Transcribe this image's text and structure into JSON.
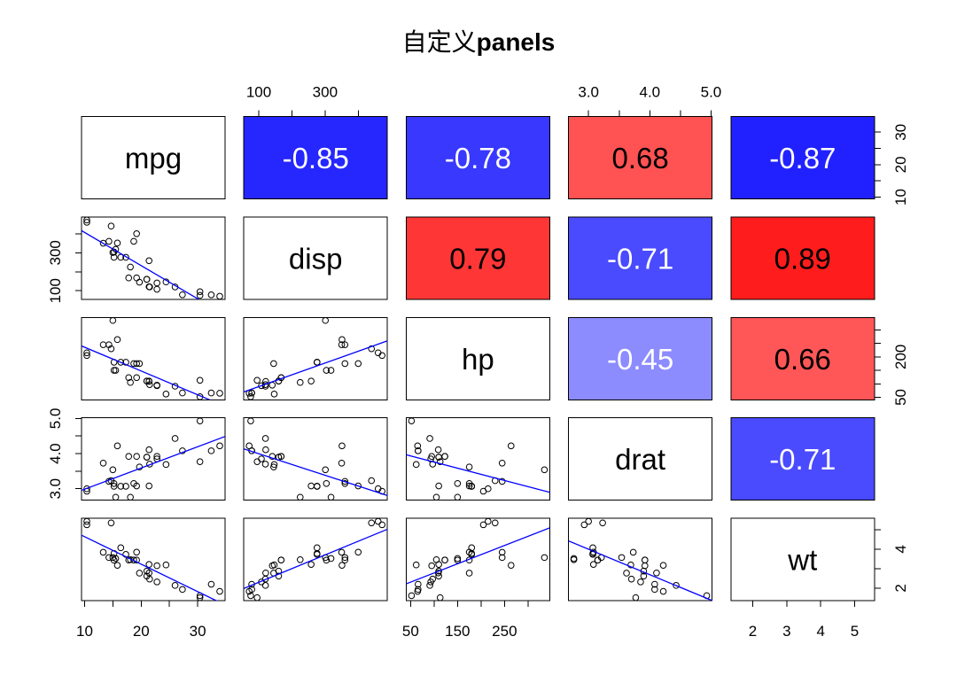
{
  "chart_data": {
    "type": "scatter",
    "title": {
      "prefix": "自定义",
      "suffix": "panels"
    },
    "variables": [
      {
        "name": "mpg",
        "values": [
          21.0,
          21.0,
          22.8,
          21.4,
          18.7,
          18.1,
          14.3,
          24.4,
          22.8,
          19.2,
          17.8,
          16.4,
          17.3,
          15.2,
          10.4,
          10.4,
          14.7,
          32.4,
          30.4,
          33.9,
          21.5,
          15.5,
          15.2,
          13.3,
          19.2,
          27.3,
          26.0,
          30.4,
          15.8,
          19.7,
          15.0,
          21.4
        ]
      },
      {
        "name": "disp",
        "values": [
          160.0,
          160.0,
          108.0,
          258.0,
          360.0,
          225.0,
          360.0,
          146.7,
          140.8,
          167.6,
          167.6,
          275.8,
          275.8,
          275.8,
          472.0,
          460.0,
          440.0,
          78.7,
          75.7,
          71.1,
          120.1,
          318.0,
          304.0,
          350.0,
          400.0,
          79.0,
          120.3,
          95.1,
          351.0,
          145.0,
          301.0,
          121.0
        ]
      },
      {
        "name": "hp",
        "values": [
          110,
          110,
          93,
          110,
          175,
          105,
          245,
          62,
          95,
          123,
          123,
          180,
          180,
          180,
          205,
          215,
          230,
          66,
          52,
          65,
          97,
          150,
          150,
          245,
          175,
          66,
          91,
          113,
          264,
          175,
          335,
          109
        ]
      },
      {
        "name": "drat",
        "values": [
          3.9,
          3.9,
          3.85,
          3.08,
          3.15,
          2.76,
          3.21,
          3.69,
          3.92,
          3.92,
          3.92,
          3.07,
          3.07,
          3.07,
          2.93,
          3.0,
          3.23,
          4.08,
          4.93,
          4.22,
          3.7,
          2.76,
          3.15,
          3.73,
          3.08,
          4.08,
          4.43,
          3.77,
          4.22,
          3.62,
          3.54,
          4.11
        ]
      },
      {
        "name": "wt",
        "values": [
          2.62,
          2.875,
          2.32,
          3.215,
          3.44,
          3.46,
          3.57,
          3.19,
          3.15,
          3.44,
          3.44,
          4.07,
          3.73,
          3.78,
          5.25,
          5.424,
          5.345,
          2.2,
          1.615,
          1.835,
          2.465,
          3.52,
          3.435,
          3.84,
          3.845,
          1.935,
          2.14,
          1.513,
          3.17,
          2.77,
          3.57,
          2.78
        ]
      }
    ],
    "correlations": [
      {
        "pair": [
          0,
          1
        ],
        "value": -0.85,
        "label": "-0.85"
      },
      {
        "pair": [
          0,
          2
        ],
        "value": -0.78,
        "label": "-0.78"
      },
      {
        "pair": [
          0,
          3
        ],
        "value": 0.68,
        "label": "0.68"
      },
      {
        "pair": [
          0,
          4
        ],
        "value": -0.87,
        "label": "-0.87"
      },
      {
        "pair": [
          1,
          2
        ],
        "value": 0.79,
        "label": "0.79"
      },
      {
        "pair": [
          1,
          3
        ],
        "value": -0.71,
        "label": "-0.71"
      },
      {
        "pair": [
          1,
          4
        ],
        "value": 0.89,
        "label": "0.89"
      },
      {
        "pair": [
          2,
          3
        ],
        "value": -0.45,
        "label": "-0.45"
      },
      {
        "pair": [
          2,
          4
        ],
        "value": 0.66,
        "label": "0.66"
      },
      {
        "pair": [
          3,
          4
        ],
        "value": -0.71,
        "label": "-0.71"
      }
    ],
    "axes": {
      "top": [
        {
          "variable": 1,
          "ticks": [
            100,
            200,
            300,
            400
          ],
          "labels": [
            {
              "at": 100,
              "text": "100"
            },
            {
              "at": 300,
              "text": "300"
            }
          ]
        },
        {
          "variable": 3,
          "ticks": [
            3.0,
            3.5,
            4.0,
            4.5,
            5.0
          ],
          "labels": [
            {
              "at": 3.0,
              "text": "3.0"
            },
            {
              "at": 4.0,
              "text": "4.0"
            },
            {
              "at": 5.0,
              "text": "5.0"
            }
          ]
        }
      ],
      "right": [
        {
          "variable": 0,
          "ticks": [
            10,
            15,
            20,
            25,
            30
          ],
          "labels": [
            {
              "at": 10,
              "text": "10"
            },
            {
              "at": 20,
              "text": "20"
            },
            {
              "at": 30,
              "text": "30"
            }
          ]
        },
        {
          "variable": 2,
          "ticks": [
            50,
            100,
            150,
            200,
            250,
            300
          ],
          "labels": [
            {
              "at": 50,
              "text": "50"
            },
            {
              "at": 200,
              "text": "200"
            }
          ]
        },
        {
          "variable": 4,
          "ticks": [
            2,
            3,
            4,
            5
          ],
          "labels": [
            {
              "at": 2,
              "text": "2"
            },
            {
              "at": 4,
              "text": "4"
            }
          ]
        }
      ],
      "left": [
        {
          "variable": 1,
          "ticks": [
            100,
            200,
            300,
            400
          ],
          "labels": [
            {
              "at": 100,
              "text": "100"
            },
            {
              "at": 300,
              "text": "300"
            }
          ]
        },
        {
          "variable": 3,
          "ticks": [
            3.0,
            3.5,
            4.0,
            4.5,
            5.0
          ],
          "labels": [
            {
              "at": 3.0,
              "text": "3.0"
            },
            {
              "at": 4.0,
              "text": "4.0"
            },
            {
              "at": 5.0,
              "text": "5.0"
            }
          ]
        }
      ],
      "bottom": [
        {
          "variable": 0,
          "ticks": [
            10,
            15,
            20,
            25,
            30
          ],
          "labels": [
            {
              "at": 10,
              "text": "10"
            },
            {
              "at": 20,
              "text": "20"
            },
            {
              "at": 30,
              "text": "30"
            }
          ]
        },
        {
          "variable": 2,
          "ticks": [
            50,
            100,
            150,
            200,
            250,
            300
          ],
          "labels": [
            {
              "at": 50,
              "text": "50"
            },
            {
              "at": 150,
              "text": "150"
            },
            {
              "at": 250,
              "text": "250"
            }
          ]
        },
        {
          "variable": 4,
          "ticks": [
            2,
            3,
            4,
            5
          ],
          "labels": [
            {
              "at": 2,
              "text": "2"
            },
            {
              "at": 3,
              "text": "3"
            },
            {
              "at": 4,
              "text": "4"
            },
            {
              "at": 5,
              "text": "5"
            }
          ]
        }
      ]
    },
    "colors": {
      "negative_fill": "#0000ff",
      "positive_fill": "#ff0000",
      "negative_text": "#ffffff",
      "positive_text": "#000000",
      "point": "#000000",
      "fit_line": "#0000ff",
      "border": "#000000"
    }
  }
}
